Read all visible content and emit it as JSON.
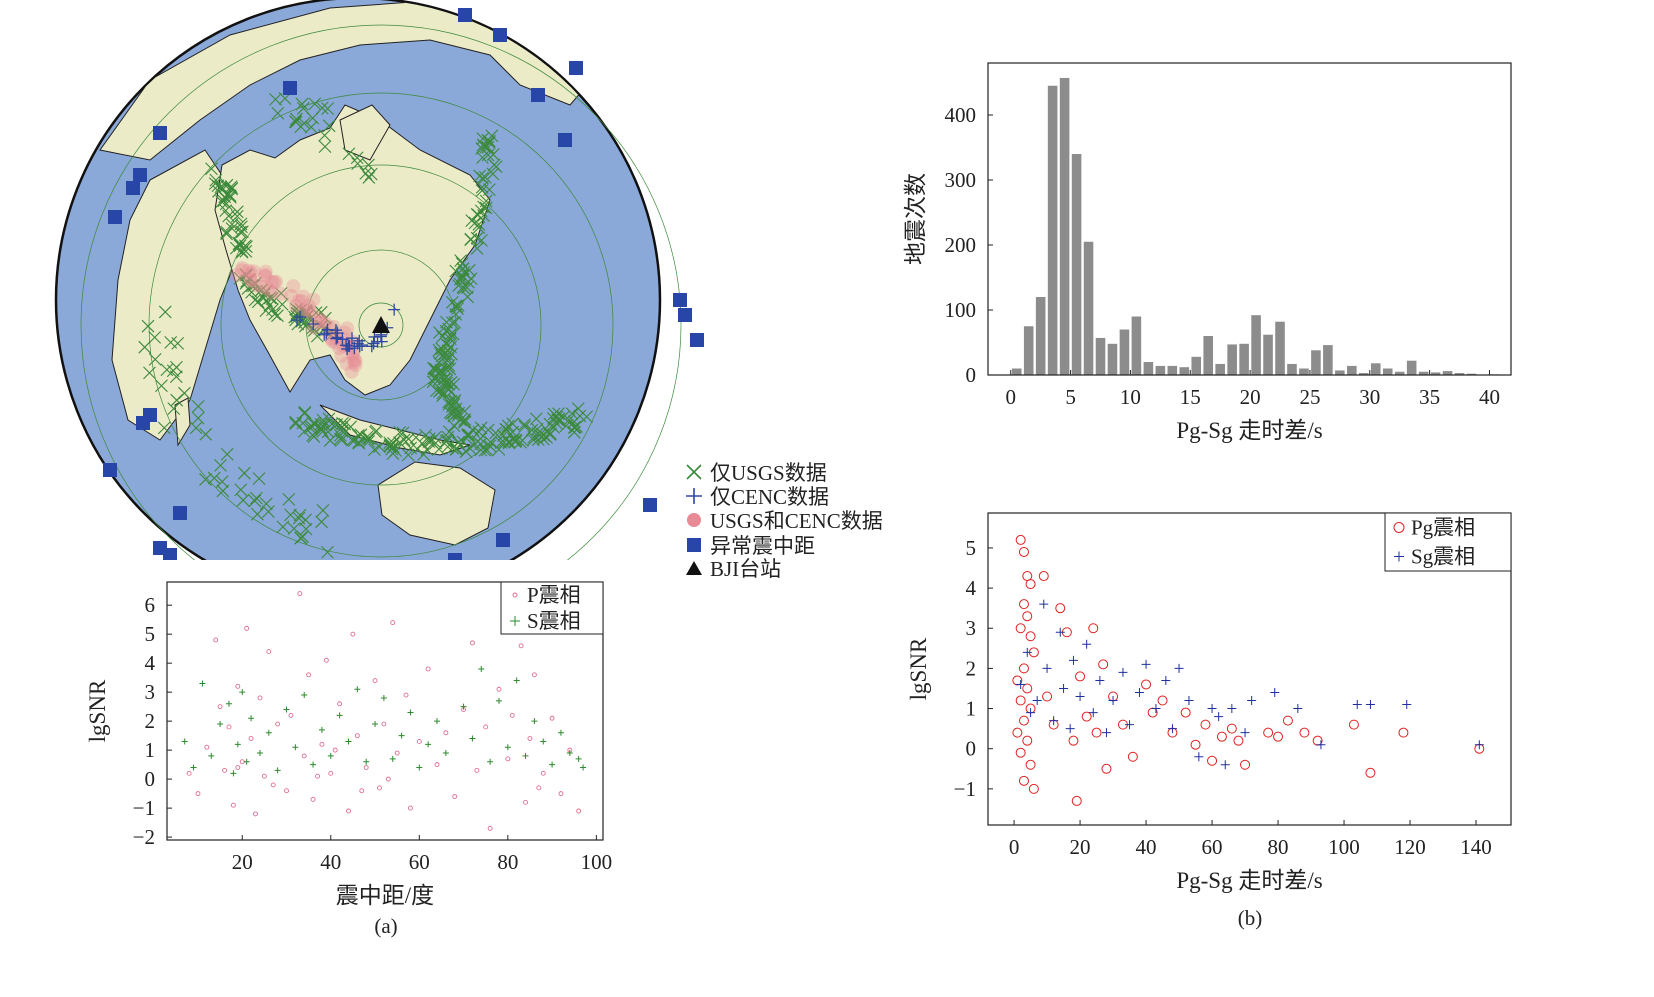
{
  "map_legend": {
    "usgs_only": "仅USGS数据",
    "cenc_only": "仅CENC数据",
    "both": "USGS和CENC数据",
    "abnormal": "异常震中距",
    "station": "BJI台站"
  },
  "colors": {
    "ocean": "#8aa8d8",
    "land": "#ecebc8",
    "usgs": "#3c8a3c",
    "cenc": "#3048a0",
    "both": "#e88a96",
    "abnormal": "#2846a8",
    "station": "#111111",
    "hist_bar": "#8c8c8c",
    "p_phase": "#e07090",
    "s_phase": "#2e8a2e",
    "pg_phase": "#e02020",
    "sg_phase": "#2030a0"
  },
  "panel_labels": {
    "a": "(a)",
    "b": "(b)"
  },
  "chart_data": [
    {
      "id": "hist",
      "type": "bar",
      "xlabel": "Pg-Sg 走时差/s",
      "ylabel": "地震次数",
      "xlim": [
        -1.9,
        41.8
      ],
      "ylim": [
        0,
        480
      ],
      "xticks": [
        0,
        5,
        10,
        15,
        20,
        25,
        30,
        35,
        40
      ],
      "yticks": [
        0,
        100,
        200,
        300,
        400
      ],
      "bin_width": 1,
      "bin_starts": [
        0,
        1,
        2,
        3,
        4,
        5,
        6,
        7,
        8,
        9,
        10,
        11,
        12,
        13,
        14,
        15,
        16,
        17,
        18,
        19,
        20,
        21,
        22,
        23,
        24,
        25,
        26,
        27,
        28,
        29,
        30,
        31,
        32,
        33,
        34,
        35,
        36,
        37,
        38,
        39,
        40
      ],
      "values": [
        10,
        75,
        120,
        445,
        457,
        340,
        205,
        57,
        48,
        70,
        90,
        20,
        14,
        14,
        12,
        28,
        60,
        17,
        47,
        48,
        92,
        62,
        82,
        17,
        10,
        38,
        46,
        7,
        14,
        3,
        18,
        10,
        5,
        22,
        5,
        4,
        6,
        3,
        2,
        0,
        1
      ]
    },
    {
      "id": "scatter_a",
      "type": "scatter",
      "xlabel": "震中距/度",
      "ylabel": "lgSNR",
      "xlim": [
        3,
        101.5
      ],
      "ylim": [
        -2.1,
        6.8
      ],
      "xticks": [
        20,
        40,
        60,
        80,
        100
      ],
      "yticks": [
        -2,
        -1,
        0,
        1,
        2,
        3,
        4,
        5,
        6
      ],
      "ytick_labels": [
        "−2",
        "−1",
        "0",
        "1",
        "2",
        "3",
        "4",
        "5",
        "6"
      ],
      "legend_position": "top-right",
      "series": [
        {
          "name": "P震相",
          "marker": "dot",
          "points": [
            [
              8,
              0.2
            ],
            [
              10,
              -0.5
            ],
            [
              12,
              1.1
            ],
            [
              14,
              4.8
            ],
            [
              15,
              2.5
            ],
            [
              16,
              0.3
            ],
            [
              17,
              1.8
            ],
            [
              18,
              -0.9
            ],
            [
              19,
              3.2
            ],
            [
              20,
              0.6
            ],
            [
              21,
              5.2
            ],
            [
              22,
              1.4
            ],
            [
              23,
              -1.2
            ],
            [
              24,
              2.8
            ],
            [
              25,
              0.1
            ],
            [
              26,
              4.4
            ],
            [
              28,
              1.9
            ],
            [
              30,
              -0.4
            ],
            [
              31,
              2.2
            ],
            [
              33,
              6.4
            ],
            [
              34,
              0.8
            ],
            [
              35,
              3.6
            ],
            [
              36,
              -0.7
            ],
            [
              38,
              1.2
            ],
            [
              39,
              4.1
            ],
            [
              40,
              0.2
            ],
            [
              42,
              2.6
            ],
            [
              44,
              -1.1
            ],
            [
              45,
              5.0
            ],
            [
              46,
              1.5
            ],
            [
              48,
              0.4
            ],
            [
              50,
              3.4
            ],
            [
              51,
              -0.3
            ],
            [
              52,
              1.9
            ],
            [
              54,
              5.4
            ],
            [
              55,
              0.9
            ],
            [
              57,
              2.9
            ],
            [
              58,
              -1.0
            ],
            [
              60,
              1.3
            ],
            [
              62,
              3.8
            ],
            [
              64,
              0.5
            ],
            [
              66,
              1.6
            ],
            [
              68,
              -0.6
            ],
            [
              70,
              2.4
            ],
            [
              72,
              4.7
            ],
            [
              73,
              0.3
            ],
            [
              75,
              1.8
            ],
            [
              76,
              -1.7
            ],
            [
              78,
              3.1
            ],
            [
              80,
              0.7
            ],
            [
              81,
              2.2
            ],
            [
              83,
              4.6
            ],
            [
              84,
              -0.8
            ],
            [
              85,
              1.4
            ],
            [
              86,
              3.6
            ],
            [
              88,
              0.2
            ],
            [
              90,
              2.1
            ],
            [
              92,
              -0.5
            ],
            [
              94,
              1.0
            ],
            [
              96,
              -1.1
            ],
            [
              27,
              -0.2
            ],
            [
              37,
              0.1
            ],
            [
              47,
              -0.4
            ],
            [
              53,
              0.0
            ],
            [
              87,
              -0.3
            ],
            [
              19,
              0.4
            ],
            [
              41,
              1.0
            ]
          ]
        },
        {
          "name": "S震相",
          "marker": "plus",
          "points": [
            [
              7,
              1.3
            ],
            [
              9,
              0.4
            ],
            [
              11,
              3.3
            ],
            [
              13,
              0.8
            ],
            [
              15,
              1.9
            ],
            [
              17,
              2.6
            ],
            [
              18,
              0.2
            ],
            [
              19,
              1.2
            ],
            [
              20,
              3.0
            ],
            [
              21,
              0.6
            ],
            [
              22,
              2.1
            ],
            [
              24,
              0.9
            ],
            [
              26,
              1.6
            ],
            [
              28,
              0.3
            ],
            [
              30,
              2.4
            ],
            [
              32,
              1.1
            ],
            [
              34,
              2.9
            ],
            [
              36,
              0.5
            ],
            [
              38,
              1.7
            ],
            [
              40,
              0.8
            ],
            [
              42,
              2.2
            ],
            [
              44,
              1.3
            ],
            [
              46,
              3.1
            ],
            [
              48,
              0.6
            ],
            [
              50,
              1.9
            ],
            [
              52,
              2.8
            ],
            [
              54,
              0.7
            ],
            [
              56,
              1.5
            ],
            [
              58,
              2.3
            ],
            [
              60,
              0.4
            ],
            [
              62,
              1.2
            ],
            [
              64,
              2.0
            ],
            [
              66,
              0.9
            ],
            [
              70,
              2.5
            ],
            [
              72,
              1.4
            ],
            [
              74,
              3.8
            ],
            [
              76,
              0.6
            ],
            [
              78,
              2.7
            ],
            [
              80,
              1.1
            ],
            [
              82,
              3.4
            ],
            [
              84,
              0.8
            ],
            [
              86,
              2.0
            ],
            [
              88,
              1.3
            ],
            [
              90,
              0.5
            ],
            [
              92,
              1.6
            ],
            [
              94,
              0.9
            ],
            [
              96,
              0.7
            ],
            [
              97,
              0.4
            ]
          ]
        }
      ]
    },
    {
      "id": "scatter_b",
      "type": "scatter",
      "xlabel": "Pg-Sg 走时差/s",
      "ylabel": "lgSNR",
      "xlim": [
        -7.9,
        150.6
      ],
      "ylim": [
        -1.9,
        5.87
      ],
      "xticks": [
        0,
        20,
        40,
        60,
        80,
        100,
        120,
        140
      ],
      "yticks": [
        -1,
        0,
        1,
        2,
        3,
        4,
        5
      ],
      "ytick_labels": [
        "−1",
        "0",
        "1",
        "2",
        "3",
        "4",
        "5"
      ],
      "legend_position": "top-right",
      "series": [
        {
          "name": "Pg震相",
          "marker": "circle",
          "points": [
            [
              2,
              5.2
            ],
            [
              3,
              4.9
            ],
            [
              4,
              4.3
            ],
            [
              5,
              4.1
            ],
            [
              3,
              3.6
            ],
            [
              4,
              3.3
            ],
            [
              2,
              3.0
            ],
            [
              5,
              2.8
            ],
            [
              6,
              2.4
            ],
            [
              3,
              2.0
            ],
            [
              1,
              1.7
            ],
            [
              4,
              1.5
            ],
            [
              2,
              1.2
            ],
            [
              5,
              1.0
            ],
            [
              3,
              0.7
            ],
            [
              1,
              0.4
            ],
            [
              4,
              0.2
            ],
            [
              2,
              -0.1
            ],
            [
              5,
              -0.4
            ],
            [
              3,
              -0.8
            ],
            [
              6,
              -1.0
            ],
            [
              9,
              4.3
            ],
            [
              10,
              1.3
            ],
            [
              12,
              0.6
            ],
            [
              14,
              3.5
            ],
            [
              16,
              2.9
            ],
            [
              18,
              0.2
            ],
            [
              19,
              -1.3
            ],
            [
              20,
              1.8
            ],
            [
              22,
              0.8
            ],
            [
              24,
              3.0
            ],
            [
              25,
              0.4
            ],
            [
              27,
              2.1
            ],
            [
              28,
              -0.5
            ],
            [
              30,
              1.3
            ],
            [
              33,
              0.6
            ],
            [
              36,
              -0.2
            ],
            [
              40,
              1.6
            ],
            [
              42,
              0.9
            ],
            [
              45,
              1.2
            ],
            [
              48,
              0.4
            ],
            [
              52,
              0.9
            ],
            [
              55,
              0.1
            ],
            [
              58,
              0.6
            ],
            [
              60,
              -0.3
            ],
            [
              63,
              0.3
            ],
            [
              66,
              0.5
            ],
            [
              68,
              0.2
            ],
            [
              70,
              -0.4
            ],
            [
              77,
              0.4
            ],
            [
              80,
              0.3
            ],
            [
              83,
              0.7
            ],
            [
              88,
              0.4
            ],
            [
              92,
              0.2
            ],
            [
              103,
              0.6
            ],
            [
              108,
              -0.6
            ],
            [
              118,
              0.4
            ],
            [
              141,
              0.0
            ]
          ]
        },
        {
          "name": "Sg震相",
          "marker": "plus",
          "points": [
            [
              2,
              1.6
            ],
            [
              4,
              2.4
            ],
            [
              5,
              0.9
            ],
            [
              7,
              1.2
            ],
            [
              9,
              3.6
            ],
            [
              10,
              2.0
            ],
            [
              12,
              0.7
            ],
            [
              14,
              2.9
            ],
            [
              15,
              1.5
            ],
            [
              17,
              0.5
            ],
            [
              18,
              2.2
            ],
            [
              20,
              1.3
            ],
            [
              22,
              2.6
            ],
            [
              24,
              0.9
            ],
            [
              26,
              1.7
            ],
            [
              28,
              0.4
            ],
            [
              30,
              1.2
            ],
            [
              33,
              1.9
            ],
            [
              35,
              0.6
            ],
            [
              38,
              1.4
            ],
            [
              40,
              2.1
            ],
            [
              43,
              1.0
            ],
            [
              46,
              1.7
            ],
            [
              48,
              0.5
            ],
            [
              50,
              2.0
            ],
            [
              53,
              1.2
            ],
            [
              56,
              -0.2
            ],
            [
              60,
              1.0
            ],
            [
              62,
              0.8
            ],
            [
              64,
              -0.4
            ],
            [
              66,
              1.0
            ],
            [
              70,
              0.4
            ],
            [
              72,
              1.2
            ],
            [
              79,
              1.4
            ],
            [
              86,
              1.0
            ],
            [
              93,
              0.1
            ],
            [
              104,
              1.1
            ],
            [
              108,
              1.1
            ],
            [
              119,
              1.1
            ],
            [
              141,
              0.1
            ]
          ]
        }
      ]
    }
  ]
}
